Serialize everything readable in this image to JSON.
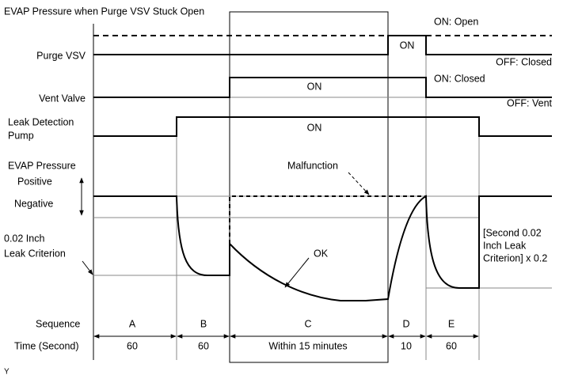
{
  "title": "EVAP Pressure when Purge VSV Stuck Open",
  "purge_vsv": {
    "label": "Purge VSV",
    "on_state": "ON: Open",
    "off_state": "OFF: Closed",
    "pulse": "ON"
  },
  "vent_valve": {
    "label": "Vent Valve",
    "on_state": "ON: Closed",
    "off_state": "OFF: Vent",
    "pulse": "ON"
  },
  "leak_detection_pump": {
    "label_lines": [
      "Leak Detection",
      "Pump"
    ],
    "pulse": "ON"
  },
  "evap_pressure": {
    "label": "EVAP Pressure",
    "positive": "Positive",
    "negative": "Negative",
    "malfunction": "Malfunction",
    "ok": "OK",
    "criterion_lines": [
      "0.02 Inch",
      "Leak Criterion"
    ],
    "second_criterion_lines": [
      "[Second 0.02",
      "Inch Leak",
      "Criterion] x 0.2"
    ]
  },
  "sequence": {
    "label": "Sequence",
    "steps": [
      "A",
      "B",
      "C",
      "D",
      "E"
    ]
  },
  "time": {
    "label": "Time (Second)",
    "durations": [
      "60",
      "60",
      "Within 15 minutes",
      "10",
      "60"
    ]
  },
  "footer": "Y"
}
